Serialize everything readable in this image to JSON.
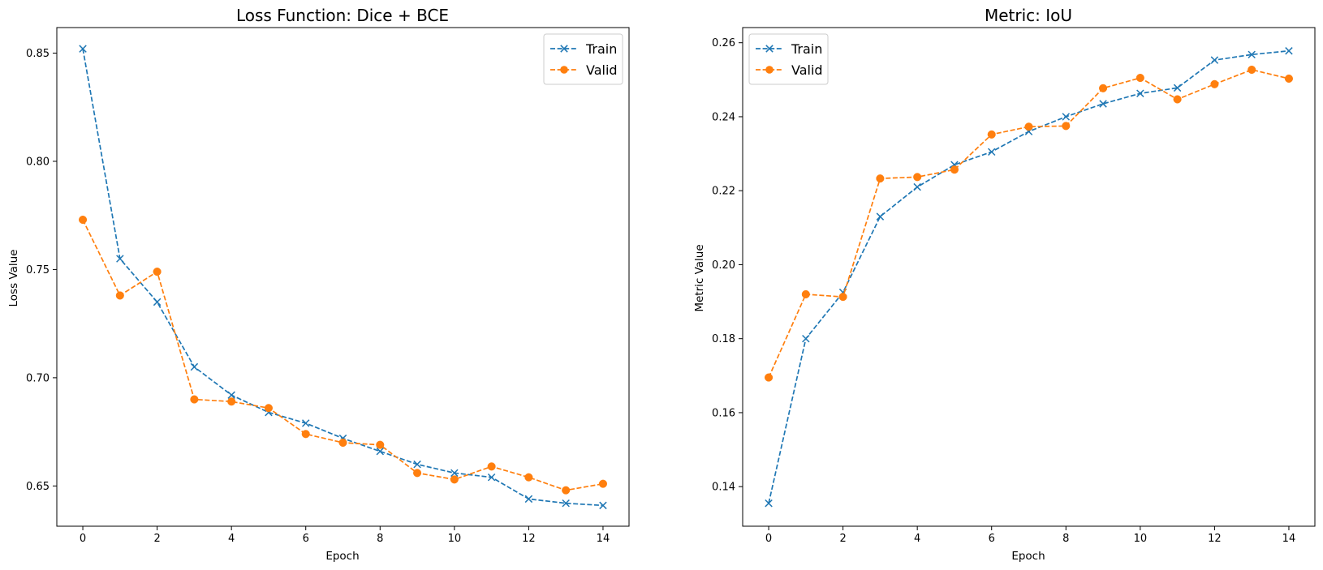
{
  "chart_data": [
    {
      "type": "line",
      "title": "Loss Function: Dice + BCE",
      "xlabel": "Epoch",
      "ylabel": "Loss Value",
      "xlim": [
        -0.7,
        14.7
      ],
      "ylim": [
        0.6314,
        0.8618
      ],
      "xticks": [
        0,
        2,
        4,
        6,
        8,
        10,
        12,
        14
      ],
      "xtick_labels": [
        "0",
        "2",
        "4",
        "6",
        "8",
        "10",
        "12",
        "14"
      ],
      "yticks": [
        0.65,
        0.7,
        0.75,
        0.8,
        0.85
      ],
      "ytick_labels": [
        "0.65",
        "0.70",
        "0.75",
        "0.80",
        "0.85"
      ],
      "grid": false,
      "legend_position": "top-right",
      "x": [
        0,
        1,
        2,
        3,
        4,
        5,
        6,
        7,
        8,
        9,
        10,
        11,
        12,
        13,
        14
      ],
      "series": [
        {
          "name": "Train",
          "color": "#1f77b4",
          "marker": "x",
          "linestyle": "dashed",
          "values": [
            0.852,
            0.755,
            0.735,
            0.705,
            0.692,
            0.684,
            0.679,
            0.672,
            0.666,
            0.66,
            0.656,
            0.654,
            0.644,
            0.642,
            0.641
          ]
        },
        {
          "name": "Valid",
          "color": "#ff7f0e",
          "marker": "o",
          "linestyle": "dashed",
          "values": [
            0.773,
            0.738,
            0.749,
            0.69,
            0.689,
            0.686,
            0.674,
            0.67,
            0.669,
            0.656,
            0.653,
            0.659,
            0.654,
            0.648,
            0.651
          ]
        }
      ]
    },
    {
      "type": "line",
      "title": "Metric: IoU",
      "xlabel": "Epoch",
      "ylabel": "Metric Value",
      "xlim": [
        -0.7,
        14.7
      ],
      "ylim": [
        0.1293,
        0.2641
      ],
      "xticks": [
        0,
        2,
        4,
        6,
        8,
        10,
        12,
        14
      ],
      "xtick_labels": [
        "0",
        "2",
        "4",
        "6",
        "8",
        "10",
        "12",
        "14"
      ],
      "yticks": [
        0.14,
        0.16,
        0.18,
        0.2,
        0.22,
        0.24,
        0.26
      ],
      "ytick_labels": [
        "0.14",
        "0.16",
        "0.18",
        "0.20",
        "0.22",
        "0.24",
        "0.26"
      ],
      "grid": false,
      "legend_position": "top-left",
      "x": [
        0,
        1,
        2,
        3,
        4,
        5,
        6,
        7,
        8,
        9,
        10,
        11,
        12,
        13,
        14
      ],
      "series": [
        {
          "name": "Train",
          "color": "#1f77b4",
          "marker": "x",
          "linestyle": "dashed",
          "values": [
            0.1355,
            0.18,
            0.1925,
            0.213,
            0.221,
            0.227,
            0.2305,
            0.236,
            0.24,
            0.2435,
            0.2463,
            0.2478,
            0.2553,
            0.2568,
            0.2578
          ]
        },
        {
          "name": "Valid",
          "color": "#ff7f0e",
          "marker": "o",
          "linestyle": "dashed",
          "values": [
            0.1695,
            0.192,
            0.1913,
            0.2233,
            0.2237,
            0.2257,
            0.2352,
            0.2373,
            0.2375,
            0.2477,
            0.2505,
            0.2447,
            0.2488,
            0.2527,
            0.2503
          ]
        }
      ]
    }
  ]
}
